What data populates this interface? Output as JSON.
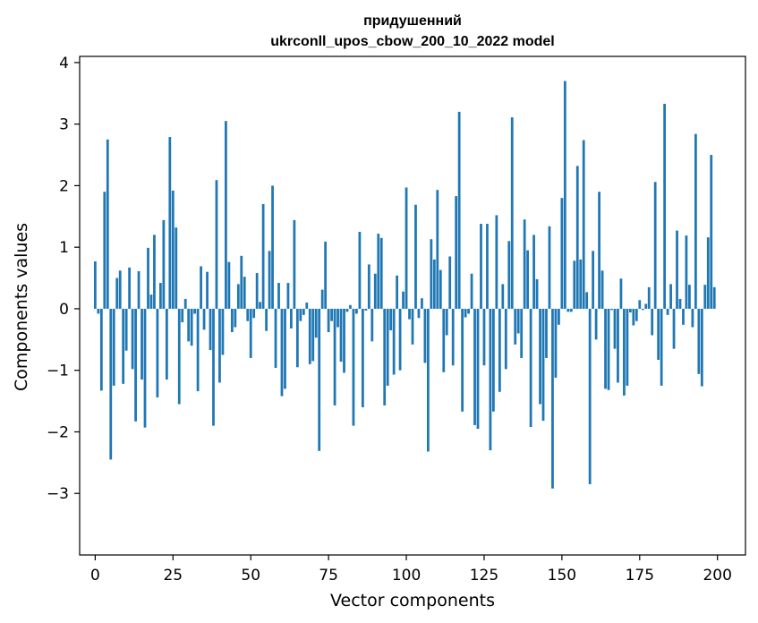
{
  "chart_data": {
    "type": "bar",
    "title_line1": "придушенний",
    "title_line2": "ukrconll_upos_cbow_200_10_2022 model",
    "xlabel": "Vector components",
    "ylabel": "Components values",
    "xlim": [
      -5,
      209
    ],
    "ylim": [
      -4,
      4.1
    ],
    "xticks": [
      0,
      25,
      50,
      75,
      100,
      125,
      150,
      175,
      200
    ],
    "xtick_labels": [
      "0",
      "25",
      "50",
      "75",
      "100",
      "125",
      "150",
      "175",
      "200"
    ],
    "yticks": [
      -3,
      -2,
      -1,
      0,
      1,
      2,
      3,
      4
    ],
    "ytick_labels": [
      "−3",
      "−2",
      "−1",
      "0",
      "1",
      "2",
      "3",
      "4"
    ],
    "grid": false,
    "bar_color": "#1f77b4",
    "x_start": 0,
    "values": [
      0.77,
      -0.08,
      -1.33,
      1.9,
      2.75,
      -2.45,
      -1.25,
      0.5,
      0.62,
      -1.22,
      -0.68,
      0.67,
      -0.98,
      -1.83,
      0.61,
      -1.15,
      -1.93,
      0.99,
      0.23,
      1.2,
      -1.44,
      0.42,
      1.44,
      -1.15,
      2.79,
      1.92,
      1.32,
      -1.55,
      -0.22,
      0.16,
      -0.53,
      -0.6,
      -0.08,
      -1.34,
      0.69,
      -0.34,
      0.6,
      -0.67,
      -1.9,
      2.09,
      -1.2,
      -0.75,
      3.05,
      0.76,
      -0.38,
      -0.3,
      0.4,
      0.86,
      0.52,
      -0.2,
      -0.8,
      -0.15,
      0.58,
      0.11,
      1.7,
      -0.36,
      0.94,
      2.0,
      -0.96,
      0.42,
      -1.42,
      -1.3,
      0.42,
      -0.32,
      1.44,
      -0.95,
      -0.2,
      -0.1,
      0.1,
      -0.9,
      -0.85,
      -0.47,
      -2.31,
      0.31,
      1.09,
      -0.38,
      -0.2,
      -1.57,
      -0.3,
      -0.86,
      -1.04,
      -0.05,
      0.06,
      -1.9,
      -0.08,
      1.25,
      -1.6,
      -0.03,
      0.72,
      -0.53,
      0.57,
      1.22,
      1.15,
      -1.57,
      -1.25,
      -0.35,
      -1.07,
      0.54,
      -1.0,
      0.28,
      1.97,
      -0.17,
      -0.58,
      1.69,
      -0.15,
      0.17,
      -0.88,
      -2.32,
      1.13,
      0.8,
      1.93,
      0.63,
      -1.03,
      -0.43,
      0.85,
      -0.92,
      1.83,
      3.2,
      -1.67,
      -0.14,
      -0.08,
      0.57,
      -1.89,
      -1.95,
      1.38,
      -0.92,
      1.38,
      -2.3,
      -1.67,
      1.52,
      -1.35,
      0.4,
      -0.98,
      1.1,
      3.11,
      -0.58,
      -0.4,
      -0.8,
      1.45,
      0.95,
      -1.92,
      1.2,
      0.48,
      -1.55,
      -1.82,
      -0.8,
      1.34,
      -2.92,
      -1.12,
      -0.26,
      1.8,
      3.7,
      -0.05,
      -0.05,
      0.78,
      2.32,
      0.8,
      2.74,
      0.27,
      -2.85,
      0.94,
      -0.5,
      1.9,
      0.62,
      -1.3,
      -1.32,
      -0.02,
      -0.65,
      -1.2,
      0.49,
      -1.41,
      -1.25,
      -0.06,
      -0.27,
      -0.2,
      0.14,
      -0.02,
      0.08,
      0.35,
      -0.43,
      2.06,
      -0.83,
      -1.25,
      3.33,
      -0.1,
      0.4,
      -0.65,
      1.27,
      0.16,
      -0.26,
      1.19,
      0.39,
      -0.3,
      2.84,
      -1.06,
      -1.26,
      0.39,
      1.16,
      2.5,
      0.35
    ]
  }
}
